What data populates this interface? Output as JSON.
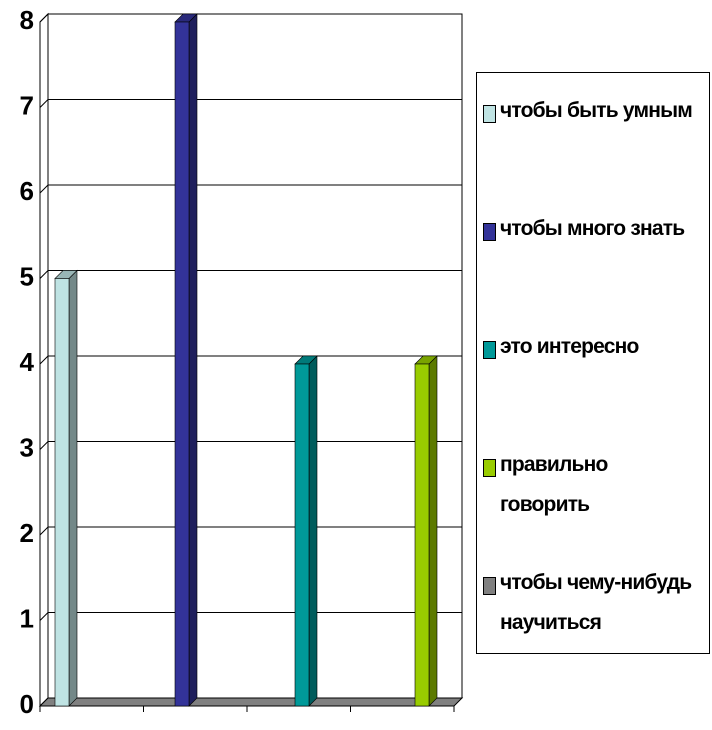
{
  "chart_data": {
    "type": "bar3d",
    "categories": [
      null,
      null,
      null,
      null
    ],
    "series": [
      {
        "name": "чтобы быть умным",
        "color": "#bfe3e3",
        "values": [
          5,
          0,
          0,
          0
        ]
      },
      {
        "name": "чтобы много знать",
        "color": "#333399",
        "values": [
          0,
          8,
          0,
          0
        ]
      },
      {
        "name": "это интересно",
        "color": "#009999",
        "values": [
          0,
          0,
          4,
          0
        ]
      },
      {
        "name": "правильно говорить",
        "color": "#99cc00",
        "values": [
          0,
          0,
          0,
          4
        ]
      },
      {
        "name": "чтобы чему-нибудь научиться",
        "color": "#808080",
        "values": [
          0,
          0,
          0,
          0
        ]
      }
    ],
    "ylim": [
      0,
      8
    ],
    "yticks": [
      0,
      1,
      2,
      3,
      4,
      5,
      6,
      7,
      8
    ],
    "grid": true
  }
}
